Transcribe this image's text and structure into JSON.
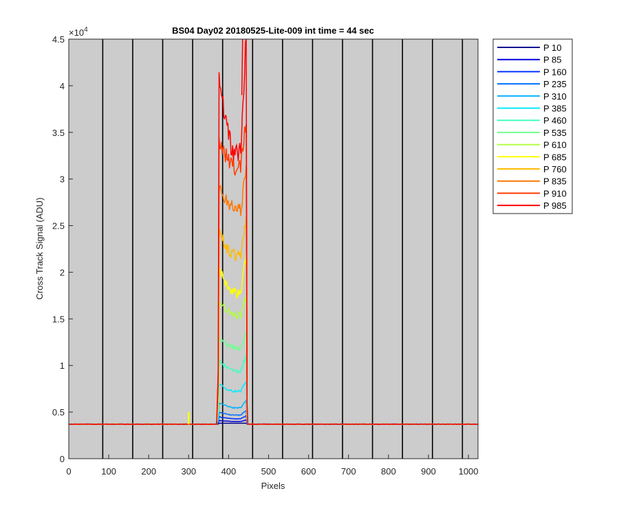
{
  "chart_data": {
    "type": "line",
    "title": "BS04 Day02 20180525-Lite-009 int time = 44 sec",
    "xlabel": "Pixels",
    "ylabel": "Cross Track Signal (ADU)",
    "y_exponent_label": "×10",
    "y_exponent": "4",
    "xlim": [
      0,
      1024
    ],
    "ylim": [
      0,
      45000
    ],
    "x_ticks": [
      0,
      100,
      200,
      300,
      400,
      500,
      600,
      700,
      800,
      900,
      1000
    ],
    "y_ticks": [
      0,
      5000,
      10000,
      15000,
      20000,
      25000,
      30000,
      35000,
      40000,
      45000
    ],
    "y_tick_labels": [
      "0",
      "0.5",
      "1",
      "1.5",
      "2",
      "2.5",
      "3",
      "3.5",
      "4",
      "4.5"
    ],
    "background_color": "#cccccc",
    "grid": false,
    "legend_position": "outside-right",
    "vertical_lines": [
      85,
      160,
      235,
      310,
      385,
      460,
      535,
      610,
      685,
      760,
      835,
      910,
      985
    ],
    "baseline": 3700,
    "plateau_x_range": [
      375,
      440
    ],
    "yellow_spike": {
      "x": 300,
      "y": 5000
    },
    "red_peak": {
      "x": 435,
      "y": 45000
    },
    "series": [
      {
        "name": "P 10",
        "color": "#00008f",
        "peak": 3800,
        "dip": 3800
      },
      {
        "name": "P 85",
        "color": "#0000dd",
        "peak": 4100,
        "dip": 4000
      },
      {
        "name": "P 160",
        "color": "#0030ff",
        "peak": 4500,
        "dip": 4300
      },
      {
        "name": "P 235",
        "color": "#0070ff",
        "peak": 5000,
        "dip": 4700
      },
      {
        "name": "P 310",
        "color": "#00b0ff",
        "peak": 6000,
        "dip": 5500
      },
      {
        "name": "P 385",
        "color": "#00eaff",
        "peak": 8000,
        "dip": 7300
      },
      {
        "name": "P 460",
        "color": "#40ffbf",
        "peak": 10500,
        "dip": 9500
      },
      {
        "name": "P 535",
        "color": "#70ff8f",
        "peak": 13000,
        "dip": 12000
      },
      {
        "name": "P 610",
        "color": "#b0ff40",
        "peak": 17000,
        "dip": 15500
      },
      {
        "name": "P 685",
        "color": "#ffff00",
        "peak": 20500,
        "dip": 18000
      },
      {
        "name": "P 760",
        "color": "#ffbb00",
        "peak": 24500,
        "dip": 22000
      },
      {
        "name": "P 835",
        "color": "#ff7700",
        "peak": 29500,
        "dip": 27000
      },
      {
        "name": "P 910",
        "color": "#ff3c00",
        "peak": 34500,
        "dip": 31500
      },
      {
        "name": "P 985",
        "color": "#ff0000",
        "peak": 41500,
        "dip": 33500
      }
    ]
  }
}
